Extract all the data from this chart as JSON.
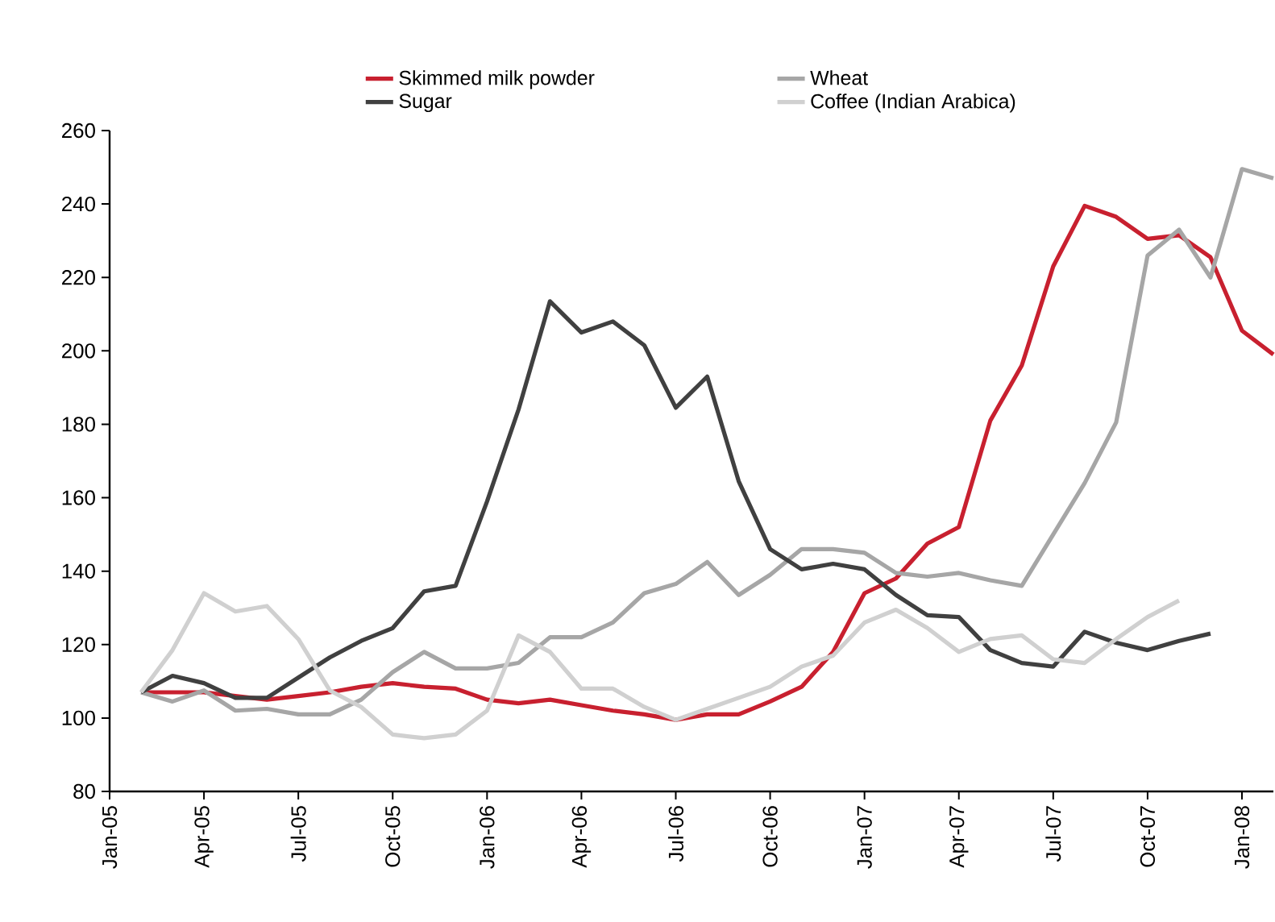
{
  "chart_data": {
    "type": "line",
    "x": [
      "2005-02",
      "2005-03",
      "2005-04",
      "2005-05",
      "2005-06",
      "2005-07",
      "2005-08",
      "2005-09",
      "2005-10",
      "2005-11",
      "2005-12",
      "2006-01",
      "2006-02",
      "2006-03",
      "2006-04",
      "2006-05",
      "2006-06",
      "2006-07",
      "2006-08",
      "2006-09",
      "2006-10",
      "2006-11",
      "2006-12",
      "2007-01",
      "2007-02",
      "2007-03",
      "2007-04",
      "2007-05",
      "2007-06",
      "2007-07",
      "2007-08",
      "2007-09",
      "2007-10",
      "2007-11",
      "2007-12",
      "2008-01",
      "2008-02"
    ],
    "series": [
      {
        "name": "Skimmed milk powder",
        "color": "#c8202f",
        "values": [
          107,
          107,
          107,
          106,
          105,
          106,
          107,
          108.5,
          109.5,
          108.5,
          108,
          105,
          104,
          105,
          103.5,
          102,
          101,
          99.5,
          101,
          101,
          104.5,
          108.5,
          118,
          134,
          138,
          147.5,
          152,
          181,
          196,
          223,
          239.5,
          236.5,
          230.5,
          231.5,
          225.5,
          205.5,
          199
        ]
      },
      {
        "name": "Wheat",
        "color": "#a6a6a6",
        "values": [
          107,
          104.5,
          107.5,
          102,
          102.5,
          101,
          101,
          105,
          112.5,
          118,
          113.5,
          113.5,
          115,
          122,
          122,
          126,
          134,
          136.5,
          142.5,
          133.5,
          139,
          146,
          146,
          145,
          139.5,
          138.5,
          139.5,
          137.5,
          136,
          150,
          164,
          180.5,
          226,
          233,
          220,
          249.5,
          247
        ]
      },
      {
        "name": "Sugar",
        "color": "#404040",
        "values": [
          107,
          111.5,
          109.5,
          105.5,
          105.5,
          111,
          116.5,
          121,
          124.5,
          134.5,
          136,
          159,
          184,
          213.5,
          205,
          208,
          201.5,
          184.5,
          193,
          164.5,
          146,
          140.5,
          142,
          140.5,
          133.5,
          128,
          127.5,
          118.5,
          115,
          114,
          123.5,
          120.5,
          118.5,
          121,
          123,
          null,
          null
        ]
      },
      {
        "name": "Coffee (Indian Arabica)",
        "color": "#d0d0d0",
        "values": [
          107,
          118.5,
          134,
          129,
          130.5,
          121.5,
          107.5,
          103,
          95.5,
          94.5,
          95.5,
          102,
          122.5,
          118,
          108,
          108,
          103,
          99.5,
          102.5,
          105.5,
          108.5,
          114,
          117,
          126,
          129.5,
          124.5,
          118,
          121.5,
          122.5,
          116,
          115,
          121.5,
          127.5,
          132,
          null,
          null,
          null
        ]
      }
    ],
    "xlim": [
      "2005-01",
      "2008-02"
    ],
    "xticks": [
      {
        "value": "2005-01",
        "label": "Jan-05"
      },
      {
        "value": "2005-04",
        "label": "Apr-05"
      },
      {
        "value": "2005-07",
        "label": "Jul-05"
      },
      {
        "value": "2005-10",
        "label": "Oct-05"
      },
      {
        "value": "2006-01",
        "label": "Jan-06"
      },
      {
        "value": "2006-04",
        "label": "Apr-06"
      },
      {
        "value": "2006-07",
        "label": "Jul-06"
      },
      {
        "value": "2006-10",
        "label": "Oct-06"
      },
      {
        "value": "2007-01",
        "label": "Jan-07"
      },
      {
        "value": "2007-04",
        "label": "Apr-07"
      },
      {
        "value": "2007-07",
        "label": "Jul-07"
      },
      {
        "value": "2007-10",
        "label": "Oct-07"
      },
      {
        "value": "2008-01",
        "label": "Jan-08"
      }
    ],
    "ylim": [
      80,
      260
    ],
    "yticks": [
      80,
      100,
      120,
      140,
      160,
      180,
      200,
      220,
      240,
      260
    ],
    "legend": "top",
    "grid": false,
    "marker": "none",
    "line_style": "solid"
  }
}
